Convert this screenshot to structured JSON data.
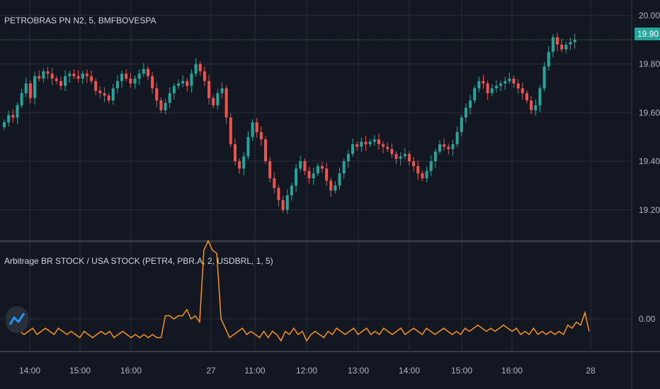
{
  "main_legend": "PETROBRAS PN N2, 5, BMFBOVESPA",
  "indicator_legend": "Arbitrage BR STOCK / USA STOCK (PETR4, PBR.A, 2, USDBRL, 1, 5)",
  "last_price_label": "19.90",
  "colors": {
    "background": "#131722",
    "grid": "#2a2e39",
    "up": "#26a69a",
    "down": "#ef5350",
    "indicator": "#f7931a",
    "separator": "#363a45",
    "last_line": "#4caf50"
  },
  "logo_icon": "tradingview-indicator-icon",
  "chart_data": [
    {
      "type": "candlestick",
      "title": "",
      "ylim": [
        19.08,
        20.04
      ],
      "y_ticks": [
        "20.00",
        "19.80",
        "19.60",
        "19.40",
        "19.20"
      ],
      "x_ticks": [
        "14:00",
        "15:00",
        "16:00",
        "27",
        "11:00",
        "12:00",
        "13:00",
        "14:00",
        "15:00",
        "16:00",
        "28"
      ],
      "last_value": 19.9,
      "close": [
        19.56,
        19.59,
        19.58,
        19.63,
        19.68,
        19.72,
        19.66,
        19.75,
        19.74,
        19.77,
        19.76,
        19.74,
        19.73,
        19.71,
        19.75,
        19.76,
        19.75,
        19.74,
        19.76,
        19.75,
        19.73,
        19.69,
        19.68,
        19.67,
        19.65,
        19.7,
        19.73,
        19.76,
        19.74,
        19.72,
        19.74,
        19.76,
        19.78,
        19.75,
        19.7,
        19.65,
        19.61,
        19.64,
        19.68,
        19.71,
        19.72,
        19.73,
        19.71,
        19.76,
        19.8,
        19.77,
        19.73,
        19.66,
        19.63,
        19.68,
        19.7,
        19.58,
        19.47,
        19.4,
        19.37,
        19.42,
        19.5,
        19.56,
        19.52,
        19.49,
        19.4,
        19.33,
        19.29,
        19.24,
        19.2,
        19.26,
        19.3,
        19.37,
        19.4,
        19.36,
        19.33,
        19.35,
        19.38,
        19.37,
        19.32,
        19.28,
        19.3,
        19.35,
        19.4,
        19.43,
        19.47,
        19.46,
        19.48,
        19.47,
        19.48,
        19.49,
        19.47,
        19.46,
        19.45,
        19.43,
        19.41,
        19.42,
        19.43,
        19.4,
        19.38,
        19.35,
        19.33,
        19.36,
        19.4,
        19.44,
        19.47,
        19.46,
        19.45,
        19.47,
        19.52,
        19.58,
        19.62,
        19.65,
        19.7,
        19.73,
        19.72,
        19.68,
        19.7,
        19.71,
        19.72,
        19.73,
        19.74,
        19.72,
        19.7,
        19.68,
        19.65,
        19.61,
        19.63,
        19.7,
        19.79,
        19.85,
        19.91,
        19.88,
        19.86,
        19.88,
        19.89,
        19.9
      ]
    },
    {
      "type": "line",
      "title": "",
      "ylim": [
        -0.1,
        0.24
      ],
      "y_ticks": [
        "0.00"
      ],
      "values": [
        -0.04,
        -0.05,
        -0.04,
        -0.03,
        -0.05,
        -0.04,
        -0.03,
        -0.04,
        -0.05,
        -0.03,
        -0.04,
        -0.05,
        -0.04,
        -0.05,
        -0.06,
        -0.04,
        -0.05,
        -0.06,
        -0.05,
        -0.04,
        -0.05,
        -0.04,
        -0.06,
        -0.05,
        -0.04,
        -0.05,
        -0.06,
        -0.05,
        -0.06,
        -0.05,
        -0.06,
        -0.05,
        -0.06,
        -0.06,
        0.01,
        0.01,
        0.0,
        0.01,
        0.01,
        0.03,
        0.0,
        0.01,
        -0.01,
        0.22,
        0.25,
        0.22,
        0.21,
        0.0,
        -0.03,
        -0.06,
        -0.05,
        -0.04,
        -0.03,
        -0.05,
        -0.04,
        -0.05,
        -0.06,
        -0.04,
        -0.06,
        -0.04,
        -0.05,
        -0.07,
        -0.04,
        -0.05,
        -0.03,
        -0.05,
        -0.04,
        -0.07,
        -0.05,
        -0.04,
        -0.05,
        -0.06,
        -0.04,
        -0.05,
        -0.03,
        -0.04,
        -0.05,
        -0.04,
        -0.03,
        -0.05,
        -0.04,
        -0.03,
        -0.05,
        -0.04,
        -0.05,
        -0.03,
        -0.04,
        -0.05,
        -0.04,
        -0.03,
        -0.05,
        -0.04,
        -0.03,
        -0.04,
        -0.05,
        -0.03,
        -0.04,
        -0.05,
        -0.04,
        -0.03,
        -0.04,
        -0.05,
        -0.04,
        -0.05,
        -0.03,
        -0.04,
        -0.03,
        -0.02,
        -0.03,
        -0.04,
        -0.03,
        -0.04,
        -0.03,
        -0.02,
        -0.03,
        -0.04,
        -0.03,
        -0.05,
        -0.04,
        -0.05,
        -0.03,
        -0.05,
        -0.04,
        -0.05,
        -0.04,
        -0.05,
        -0.04,
        -0.05,
        -0.02,
        -0.03,
        -0.01,
        -0.02,
        0.02,
        -0.04
      ]
    }
  ]
}
